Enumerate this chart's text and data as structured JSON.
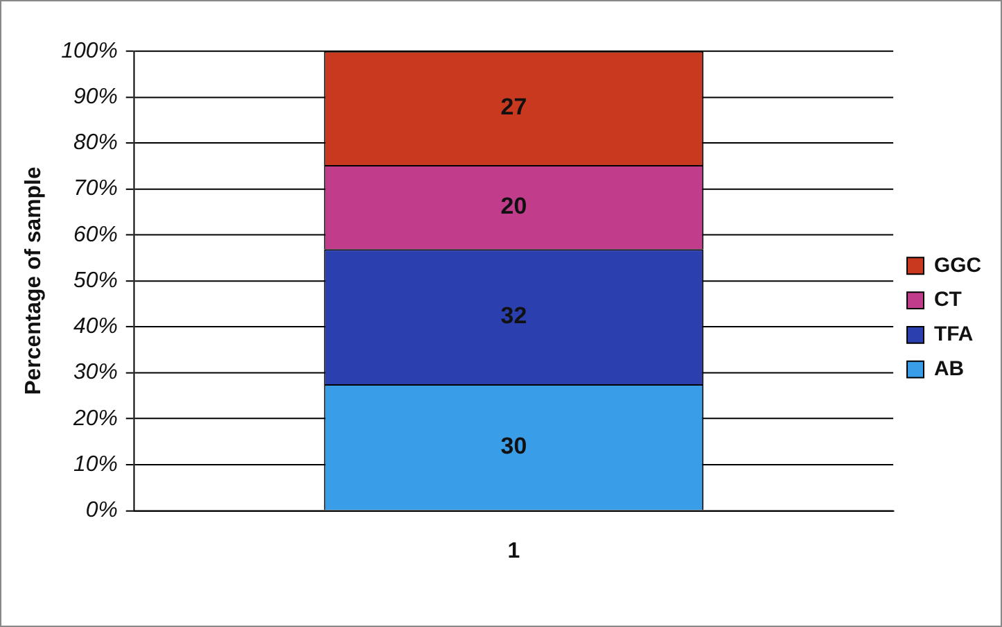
{
  "chart_data": {
    "type": "bar",
    "stacked": true,
    "ylabel": "Percentage of sample",
    "categories": [
      "1"
    ],
    "series": [
      {
        "name": "AB",
        "color": "#3a9de8",
        "values": [
          27.5
        ]
      },
      {
        "name": "TFA",
        "color": "#2b3fae",
        "values": [
          29.4
        ]
      },
      {
        "name": "CT",
        "color": "#c23c8c",
        "values": [
          18.3
        ]
      },
      {
        "name": "GGC",
        "color": "#c8391f",
        "values": [
          24.8
        ]
      }
    ],
    "annotations": [
      "30",
      "32",
      "20",
      "27"
    ],
    "ylim": [
      0,
      100
    ],
    "yticks": [
      {
        "value": 0,
        "label": "0%"
      },
      {
        "value": 10,
        "label": "10%"
      },
      {
        "value": 20,
        "label": "20%"
      },
      {
        "value": 30,
        "label": "30%"
      },
      {
        "value": 40,
        "label": "40%"
      },
      {
        "value": 50,
        "label": "50%"
      },
      {
        "value": 60,
        "label": "60%"
      },
      {
        "value": 70,
        "label": "70%"
      },
      {
        "value": 80,
        "label": "80%"
      },
      {
        "value": 90,
        "label": "90%"
      },
      {
        "value": 100,
        "label": "100%"
      }
    ],
    "grid": "y",
    "legend": "right"
  }
}
